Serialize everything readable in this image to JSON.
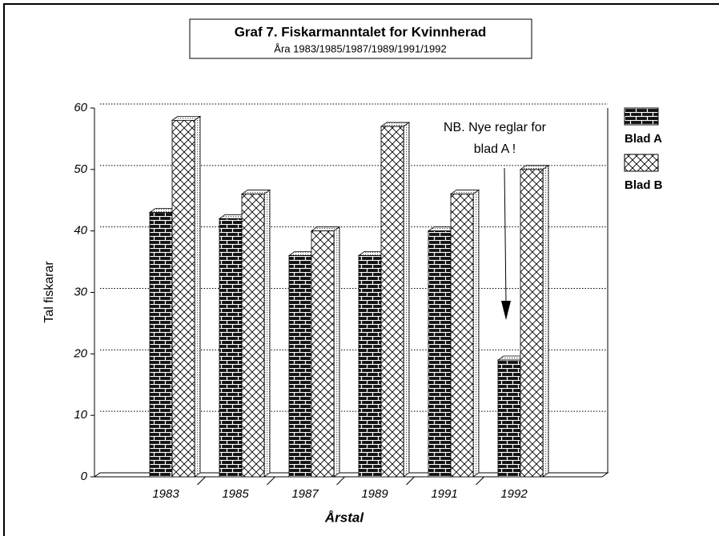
{
  "chart_data": {
    "type": "bar",
    "title": "Graf 7. Fiskarmanntalet for Kvinnherad",
    "subtitle": "Åra 1983/1985/1987/1989/1991/1992",
    "y_label": "Tal fiskarar",
    "x_label": "Årstal",
    "annotation": [
      "NB. Nye reglar for",
      "blad A !"
    ],
    "categories": [
      "1983",
      "1985",
      "1987",
      "1989",
      "1991",
      "1992"
    ],
    "series": [
      {
        "name": "Blad A",
        "color": "#000000",
        "pattern": "brick",
        "values": [
          43,
          42,
          36,
          36,
          40,
          19
        ]
      },
      {
        "name": "Blad B",
        "color": "#000000",
        "pattern": "crosshatch",
        "values": [
          58,
          46,
          40,
          57,
          46,
          50
        ]
      }
    ],
    "ylim": [
      0,
      60
    ],
    "yticks": [
      0,
      10,
      20,
      30,
      40,
      50,
      60
    ],
    "grid": true
  }
}
